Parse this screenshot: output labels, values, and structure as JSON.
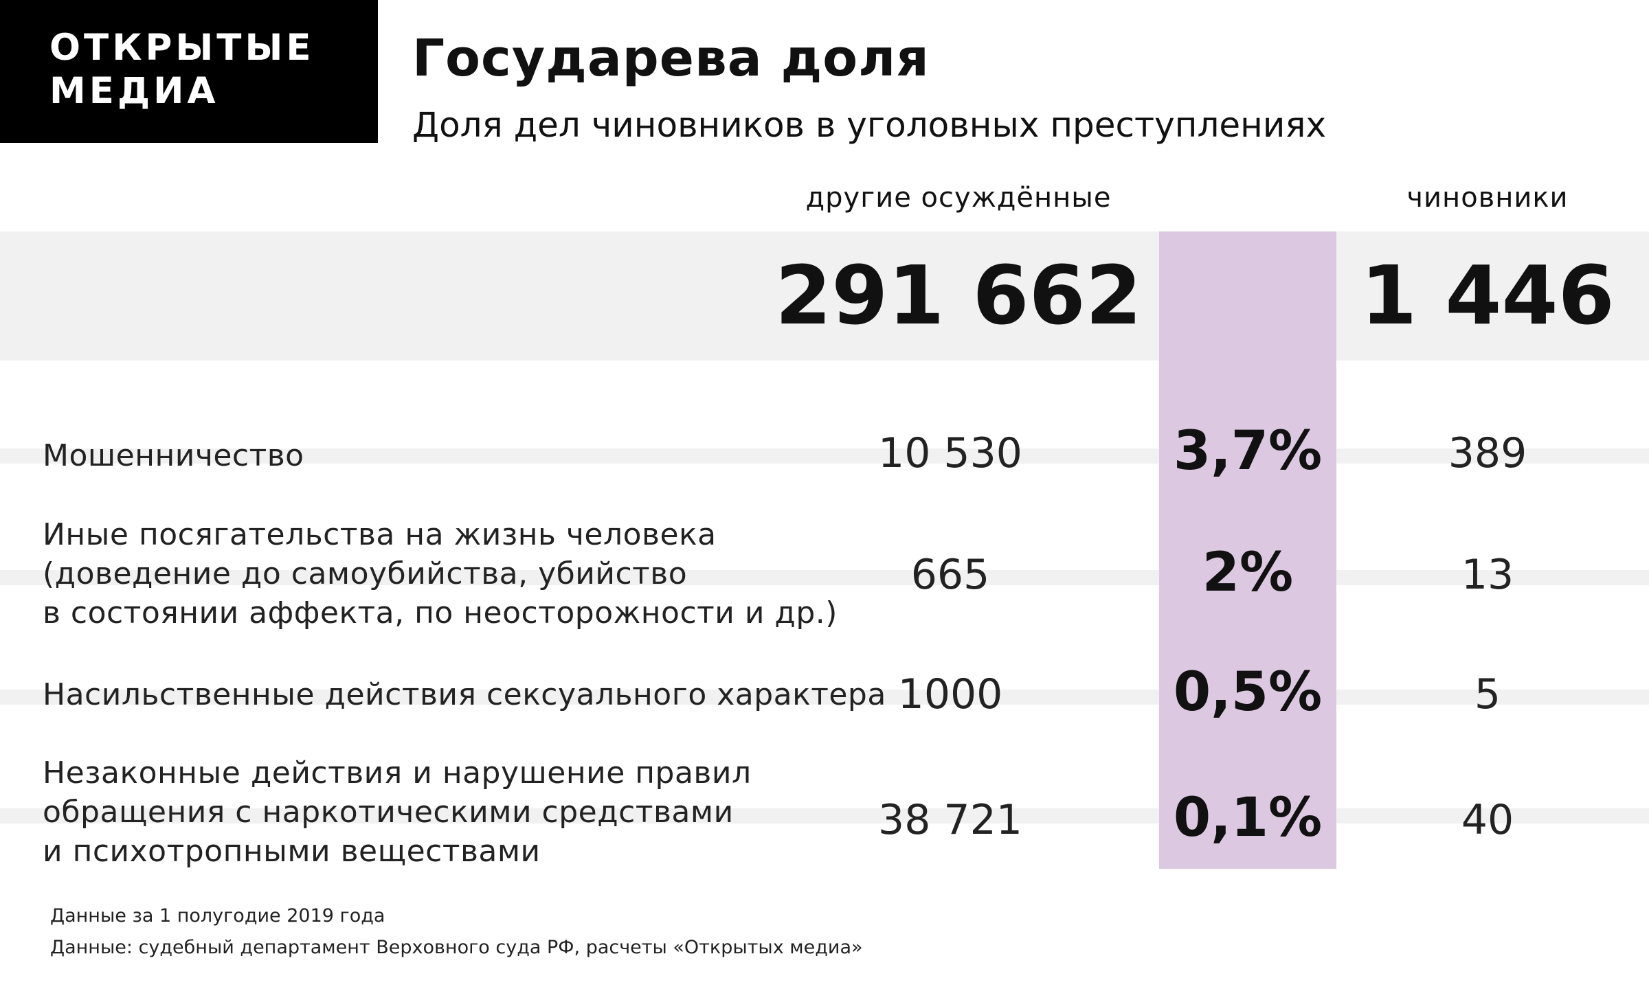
{
  "brand": {
    "line1": "ОТКРЫТЫЕ",
    "line2": "МЕДИА"
  },
  "header": {
    "title": "Государева доля",
    "subtitle": "Доля дел чиновников в уголовных преступлениях"
  },
  "columns": {
    "other": "другие осуждённые",
    "officials": "чиновники"
  },
  "totals": {
    "other": "291 662",
    "officials": "1 446"
  },
  "rows": [
    {
      "label_lines": [
        "Мошенничество"
      ],
      "other": "10 530",
      "share": "3,7%",
      "officials": "389"
    },
    {
      "label_lines": [
        "Иные посягательства на жизнь человека",
        "(доведение до самоубийства, убийство",
        "в состоянии аффекта, по неосторожности и др.)"
      ],
      "other": "665",
      "share": "2%",
      "officials": "13"
    },
    {
      "label_lines": [
        "Насильственные действия сексуального характера"
      ],
      "other": "1000",
      "share": "0,5%",
      "officials": "5"
    },
    {
      "label_lines": [
        "Незаконные действия и нарушение правил",
        "обращения с наркотическими средствами",
        "и психотропными веществами"
      ],
      "other": "38 721",
      "share": "0,1%",
      "officials": "40"
    }
  ],
  "notes": [
    "Данные за 1 полугодие 2019 года",
    "Данные: судебный департамент Верховного суда РФ, расчеты «Открытых медиа»"
  ],
  "colors": {
    "share_column": "#ddc8e1",
    "band": "#f1f1f1",
    "logo_bg": "#000000"
  },
  "chart_data": {
    "type": "table",
    "title": "Государева доля",
    "subtitle": "Доля дел чиновников в уголовных преступлениях",
    "columns": [
      "другие осуждённые",
      "чиновники"
    ],
    "totals": {
      "other": 291662,
      "officials": 1446
    },
    "categories": [
      "Мошенничество",
      "Иные посягательства на жизнь человека (доведение до самоубийства, убийство в состоянии аффекта, по неосторожности и др.)",
      "Насильственные действия сексуального характера",
      "Незаконные действия и нарушение правил обращения с наркотическими средствами и психотропными веществами"
    ],
    "series": [
      {
        "name": "другие осуждённые",
        "values": [
          10530,
          665,
          1000,
          38721
        ]
      },
      {
        "name": "чиновники",
        "values": [
          389,
          13,
          5,
          40
        ]
      }
    ],
    "share_percent": [
      3.7,
      2,
      0.5,
      0.1
    ]
  }
}
